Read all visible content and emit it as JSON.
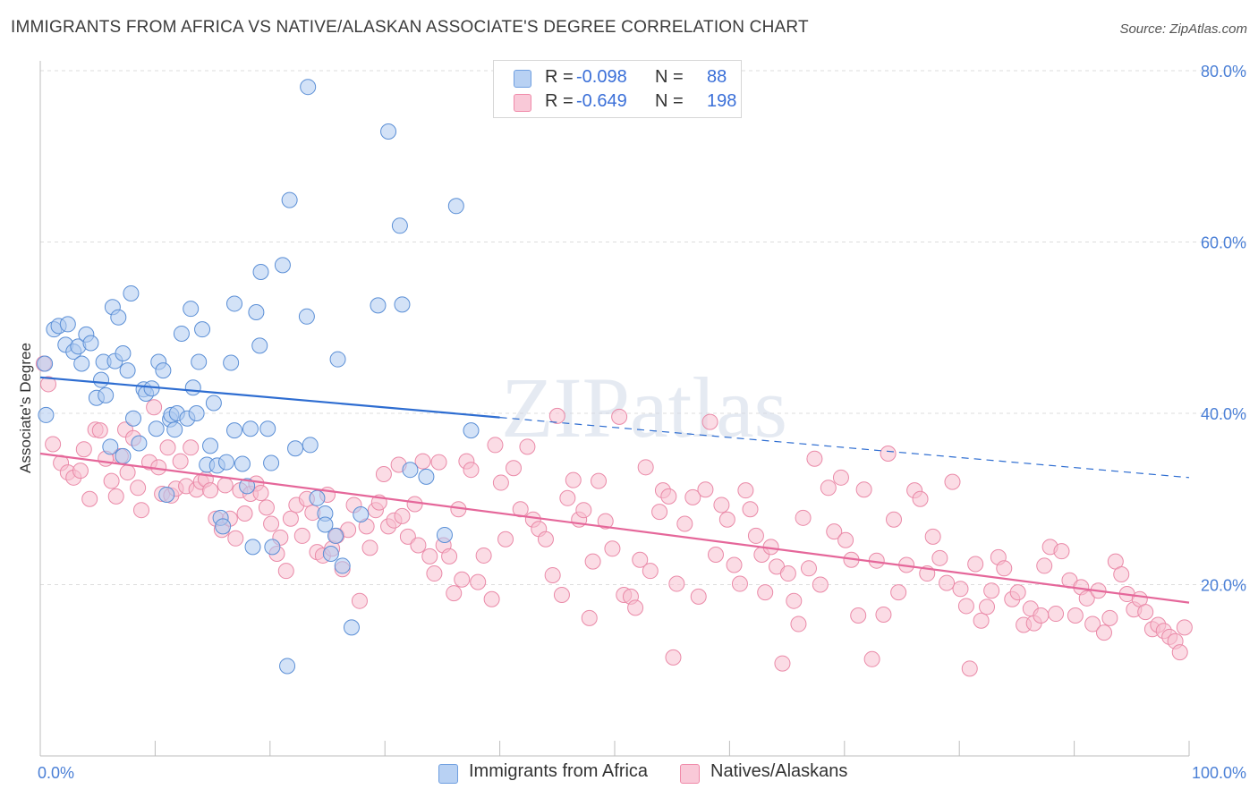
{
  "title": "IMMIGRANTS FROM AFRICA VS NATIVE/ALASKAN ASSOCIATE'S DEGREE CORRELATION CHART",
  "source": "Source: ZipAtlas.com",
  "watermark": "ZIPatlas",
  "legend": {
    "r_label": "R =",
    "n_label": "N =",
    "rows": [
      {
        "r": "-0.098",
        "n": "88",
        "color": "#6f9fe0"
      },
      {
        "r": "-0.649",
        "n": "198",
        "color": "#f08aa9"
      }
    ]
  },
  "colors": {
    "blue_fill": "#aecbf1",
    "blue_stroke": "#5b8fd6",
    "blue_line": "#2e6dd1",
    "pink_fill": "#f7bfd0",
    "pink_stroke": "#ea8aa8",
    "pink_line": "#e5679a",
    "tick_text": "#4a7fd6",
    "grid": "#dddddd"
  },
  "chart_data": {
    "type": "scatter",
    "title": "IMMIGRANTS FROM AFRICA VS NATIVE/ALASKAN ASSOCIATE'S DEGREE CORRELATION CHART",
    "xlabel": "",
    "ylabel": "Associate's Degree",
    "xlim": [
      0,
      100
    ],
    "ylim": [
      0,
      80
    ],
    "x_ticks": [
      {
        "value": 0,
        "label": "0.0%"
      },
      {
        "value": 100,
        "label": "100.0%"
      }
    ],
    "y_ticks": [
      {
        "value": 20,
        "label": "20.0%"
      },
      {
        "value": 40,
        "label": "40.0%"
      },
      {
        "value": 60,
        "label": "60.0%"
      },
      {
        "value": 80,
        "label": "80.0%"
      }
    ],
    "grid": true,
    "legend_position": "top-center",
    "series": [
      {
        "name": "Immigrants from Africa",
        "color": "#6f9fe0",
        "r": -0.098,
        "n": 88,
        "trend": {
          "x0": 0,
          "y0": 44.2,
          "x1": 100,
          "y1": 32.5,
          "solid_until": 40
        },
        "points": [
          [
            0.5,
            39.8
          ],
          [
            0.4,
            45.8
          ],
          [
            1.2,
            49.8
          ],
          [
            1.6,
            50.2
          ],
          [
            2.2,
            48.0
          ],
          [
            2.4,
            50.4
          ],
          [
            2.9,
            47.2
          ],
          [
            3.3,
            47.8
          ],
          [
            3.6,
            45.8
          ],
          [
            4.0,
            49.2
          ],
          [
            4.4,
            48.2
          ],
          [
            4.9,
            41.8
          ],
          [
            5.3,
            43.9
          ],
          [
            5.7,
            42.1
          ],
          [
            6.1,
            36.1
          ],
          [
            5.5,
            46.0
          ],
          [
            6.3,
            52.4
          ],
          [
            6.5,
            46.1
          ],
          [
            6.8,
            51.2
          ],
          [
            7.2,
            35.0
          ],
          [
            7.2,
            47.0
          ],
          [
            7.6,
            45.0
          ],
          [
            8.1,
            39.4
          ],
          [
            7.9,
            54.0
          ],
          [
            8.6,
            36.5
          ],
          [
            9.0,
            42.8
          ],
          [
            9.2,
            42.3
          ],
          [
            9.7,
            42.9
          ],
          [
            10.1,
            38.2
          ],
          [
            10.3,
            46.0
          ],
          [
            10.7,
            45.0
          ],
          [
            11.0,
            30.5
          ],
          [
            11.3,
            39.3
          ],
          [
            11.4,
            39.8
          ],
          [
            11.7,
            38.1
          ],
          [
            11.9,
            40.0
          ],
          [
            12.3,
            49.3
          ],
          [
            12.8,
            39.4
          ],
          [
            13.1,
            52.2
          ],
          [
            13.3,
            43.0
          ],
          [
            13.6,
            40.0
          ],
          [
            13.8,
            46.0
          ],
          [
            14.1,
            49.8
          ],
          [
            14.5,
            34.0
          ],
          [
            14.8,
            36.2
          ],
          [
            15.1,
            41.2
          ],
          [
            15.4,
            33.9
          ],
          [
            15.7,
            27.8
          ],
          [
            15.9,
            26.8
          ],
          [
            16.2,
            34.3
          ],
          [
            16.6,
            45.9
          ],
          [
            16.9,
            38.0
          ],
          [
            16.9,
            52.8
          ],
          [
            17.6,
            34.1
          ],
          [
            18.0,
            31.5
          ],
          [
            18.5,
            24.4
          ],
          [
            18.3,
            38.2
          ],
          [
            18.8,
            51.8
          ],
          [
            19.1,
            47.9
          ],
          [
            19.2,
            56.5
          ],
          [
            19.8,
            38.2
          ],
          [
            20.1,
            34.2
          ],
          [
            20.2,
            24.4
          ],
          [
            21.1,
            57.3
          ],
          [
            21.5,
            10.5
          ],
          [
            21.7,
            64.9
          ],
          [
            22.2,
            35.9
          ],
          [
            23.2,
            51.3
          ],
          [
            23.5,
            36.3
          ],
          [
            24.1,
            30.1
          ],
          [
            23.3,
            78.1
          ],
          [
            24.8,
            28.3
          ],
          [
            24.8,
            27.0
          ],
          [
            25.3,
            23.6
          ],
          [
            25.9,
            46.3
          ],
          [
            25.7,
            25.7
          ],
          [
            26.3,
            22.2
          ],
          [
            27.1,
            15.0
          ],
          [
            27.9,
            28.2
          ],
          [
            29.4,
            52.6
          ],
          [
            30.3,
            72.9
          ],
          [
            31.3,
            61.9
          ],
          [
            31.5,
            52.7
          ],
          [
            32.2,
            33.4
          ],
          [
            33.6,
            32.6
          ],
          [
            35.2,
            25.8
          ],
          [
            36.2,
            64.2
          ],
          [
            37.5,
            38.0
          ]
        ]
      },
      {
        "name": "Natives/Alaskans",
        "color": "#f08aa9",
        "r": -0.649,
        "n": 198,
        "trend": {
          "x0": 0,
          "y0": 35.3,
          "x1": 100,
          "y1": 17.9
        },
        "points": [
          [
            0.3,
            45.8
          ],
          [
            0.7,
            43.4
          ],
          [
            1.1,
            36.4
          ],
          [
            1.8,
            34.2
          ],
          [
            2.4,
            33.1
          ],
          [
            2.9,
            32.5
          ],
          [
            3.5,
            33.3
          ],
          [
            3.8,
            35.8
          ],
          [
            4.3,
            30.0
          ],
          [
            4.8,
            38.1
          ],
          [
            5.2,
            38.0
          ],
          [
            5.7,
            34.7
          ],
          [
            6.2,
            32.1
          ],
          [
            6.6,
            30.3
          ],
          [
            7.0,
            35.0
          ],
          [
            7.4,
            38.1
          ],
          [
            7.6,
            33.1
          ],
          [
            8.1,
            37.1
          ],
          [
            8.5,
            31.3
          ],
          [
            8.8,
            28.7
          ],
          [
            9.5,
            34.3
          ],
          [
            9.9,
            40.7
          ],
          [
            10.3,
            33.7
          ],
          [
            10.6,
            30.6
          ],
          [
            11.1,
            36.0
          ],
          [
            11.4,
            30.4
          ],
          [
            11.8,
            31.2
          ],
          [
            12.2,
            34.4
          ],
          [
            12.7,
            31.5
          ],
          [
            13.1,
            36.0
          ],
          [
            13.6,
            31.1
          ],
          [
            14.0,
            32.0
          ],
          [
            14.4,
            32.3
          ],
          [
            14.8,
            31.0
          ],
          [
            15.3,
            27.7
          ],
          [
            15.8,
            26.4
          ],
          [
            16.1,
            31.6
          ],
          [
            16.5,
            27.7
          ],
          [
            17.0,
            25.4
          ],
          [
            17.4,
            31.0
          ],
          [
            17.8,
            28.3
          ],
          [
            18.3,
            30.6
          ],
          [
            18.8,
            31.8
          ],
          [
            19.2,
            30.7
          ],
          [
            19.7,
            29.0
          ],
          [
            20.1,
            27.1
          ],
          [
            20.6,
            23.6
          ],
          [
            20.9,
            25.5
          ],
          [
            21.4,
            21.6
          ],
          [
            21.8,
            27.7
          ],
          [
            22.3,
            29.3
          ],
          [
            22.8,
            25.7
          ],
          [
            23.2,
            30.0
          ],
          [
            23.7,
            28.4
          ],
          [
            24.1,
            23.8
          ],
          [
            24.6,
            23.4
          ],
          [
            25.0,
            30.5
          ],
          [
            25.4,
            24.2
          ],
          [
            25.8,
            25.7
          ],
          [
            26.3,
            21.8
          ],
          [
            26.8,
            26.4
          ],
          [
            27.3,
            29.3
          ],
          [
            27.8,
            18.1
          ],
          [
            28.4,
            26.8
          ],
          [
            28.7,
            24.3
          ],
          [
            29.2,
            28.7
          ],
          [
            29.5,
            29.6
          ],
          [
            29.9,
            32.9
          ],
          [
            30.3,
            26.8
          ],
          [
            30.8,
            27.5
          ],
          [
            31.2,
            34.0
          ],
          [
            31.5,
            28.0
          ],
          [
            32.0,
            25.6
          ],
          [
            32.6,
            29.4
          ],
          [
            32.9,
            24.6
          ],
          [
            33.3,
            34.4
          ],
          [
            33.9,
            23.3
          ],
          [
            34.3,
            21.3
          ],
          [
            34.7,
            34.3
          ],
          [
            35.1,
            24.6
          ],
          [
            35.6,
            23.3
          ],
          [
            36.0,
            19.0
          ],
          [
            36.4,
            28.8
          ],
          [
            36.7,
            20.6
          ],
          [
            37.1,
            34.4
          ],
          [
            37.5,
            33.4
          ],
          [
            38.1,
            20.3
          ],
          [
            38.6,
            23.4
          ],
          [
            39.3,
            18.3
          ],
          [
            39.6,
            36.3
          ],
          [
            40.1,
            31.9
          ],
          [
            40.5,
            25.3
          ],
          [
            41.2,
            33.6
          ],
          [
            41.8,
            28.8
          ],
          [
            42.4,
            36.1
          ],
          [
            42.9,
            27.6
          ],
          [
            43.4,
            26.5
          ],
          [
            44.0,
            25.3
          ],
          [
            44.6,
            21.1
          ],
          [
            45.0,
            39.7
          ],
          [
            45.4,
            18.8
          ],
          [
            45.9,
            30.1
          ],
          [
            46.4,
            32.2
          ],
          [
            46.9,
            27.6
          ],
          [
            47.3,
            28.7
          ],
          [
            47.8,
            16.1
          ],
          [
            48.1,
            22.7
          ],
          [
            48.6,
            32.1
          ],
          [
            49.2,
            27.4
          ],
          [
            49.8,
            24.2
          ],
          [
            50.4,
            39.6
          ],
          [
            50.8,
            18.8
          ],
          [
            51.4,
            18.6
          ],
          [
            51.8,
            17.3
          ],
          [
            52.2,
            22.9
          ],
          [
            52.7,
            33.7
          ],
          [
            53.1,
            21.6
          ],
          [
            53.9,
            28.5
          ],
          [
            54.2,
            31.0
          ],
          [
            54.7,
            30.3
          ],
          [
            55.1,
            11.5
          ],
          [
            55.4,
            20.1
          ],
          [
            56.1,
            27.1
          ],
          [
            56.8,
            30.2
          ],
          [
            57.3,
            18.6
          ],
          [
            57.9,
            31.1
          ],
          [
            58.3,
            39.0
          ],
          [
            58.8,
            23.5
          ],
          [
            59.3,
            29.3
          ],
          [
            59.8,
            27.6
          ],
          [
            60.4,
            22.3
          ],
          [
            60.9,
            20.1
          ],
          [
            61.4,
            31.0
          ],
          [
            61.8,
            28.8
          ],
          [
            62.3,
            25.7
          ],
          [
            62.8,
            23.5
          ],
          [
            63.1,
            19.1
          ],
          [
            63.6,
            24.4
          ],
          [
            64.1,
            22.1
          ],
          [
            64.6,
            10.8
          ],
          [
            65.1,
            21.3
          ],
          [
            65.6,
            18.1
          ],
          [
            66.0,
            15.4
          ],
          [
            66.4,
            27.8
          ],
          [
            66.9,
            21.9
          ],
          [
            67.4,
            34.7
          ],
          [
            67.9,
            20.0
          ],
          [
            68.6,
            31.3
          ],
          [
            69.1,
            26.2
          ],
          [
            69.7,
            32.5
          ],
          [
            70.1,
            25.2
          ],
          [
            70.6,
            22.9
          ],
          [
            71.2,
            16.4
          ],
          [
            71.7,
            31.1
          ],
          [
            72.4,
            11.3
          ],
          [
            72.8,
            22.8
          ],
          [
            73.4,
            16.5
          ],
          [
            73.8,
            35.3
          ],
          [
            74.3,
            27.6
          ],
          [
            74.7,
            19.1
          ],
          [
            75.4,
            22.3
          ],
          [
            76.1,
            31.0
          ],
          [
            76.6,
            30.0
          ],
          [
            77.2,
            21.3
          ],
          [
            77.7,
            25.6
          ],
          [
            78.3,
            23.1
          ],
          [
            78.9,
            20.2
          ],
          [
            79.4,
            32.0
          ],
          [
            80.1,
            19.5
          ],
          [
            80.6,
            17.5
          ],
          [
            80.9,
            10.2
          ],
          [
            81.4,
            22.4
          ],
          [
            81.9,
            15.8
          ],
          [
            82.4,
            17.4
          ],
          [
            82.8,
            19.3
          ],
          [
            83.4,
            23.2
          ],
          [
            83.9,
            21.9
          ],
          [
            84.6,
            18.3
          ],
          [
            85.1,
            19.1
          ],
          [
            85.6,
            15.3
          ],
          [
            86.2,
            17.2
          ],
          [
            86.5,
            15.5
          ],
          [
            87.1,
            16.4
          ],
          [
            87.4,
            22.2
          ],
          [
            87.9,
            24.4
          ],
          [
            88.4,
            16.6
          ],
          [
            88.9,
            23.9
          ],
          [
            89.6,
            20.5
          ],
          [
            90.1,
            16.4
          ],
          [
            90.6,
            19.7
          ],
          [
            91.1,
            18.4
          ],
          [
            91.6,
            15.4
          ],
          [
            92.1,
            19.3
          ],
          [
            92.6,
            14.4
          ],
          [
            93.1,
            16.1
          ],
          [
            93.6,
            22.7
          ],
          [
            94.1,
            21.2
          ],
          [
            94.6,
            18.9
          ],
          [
            95.2,
            17.1
          ],
          [
            95.7,
            18.3
          ],
          [
            96.2,
            16.8
          ],
          [
            96.8,
            14.8
          ],
          [
            97.3,
            15.3
          ],
          [
            97.8,
            14.6
          ],
          [
            98.3,
            13.9
          ],
          [
            98.8,
            13.4
          ],
          [
            99.2,
            12.1
          ],
          [
            99.6,
            15.0
          ]
        ]
      }
    ]
  }
}
